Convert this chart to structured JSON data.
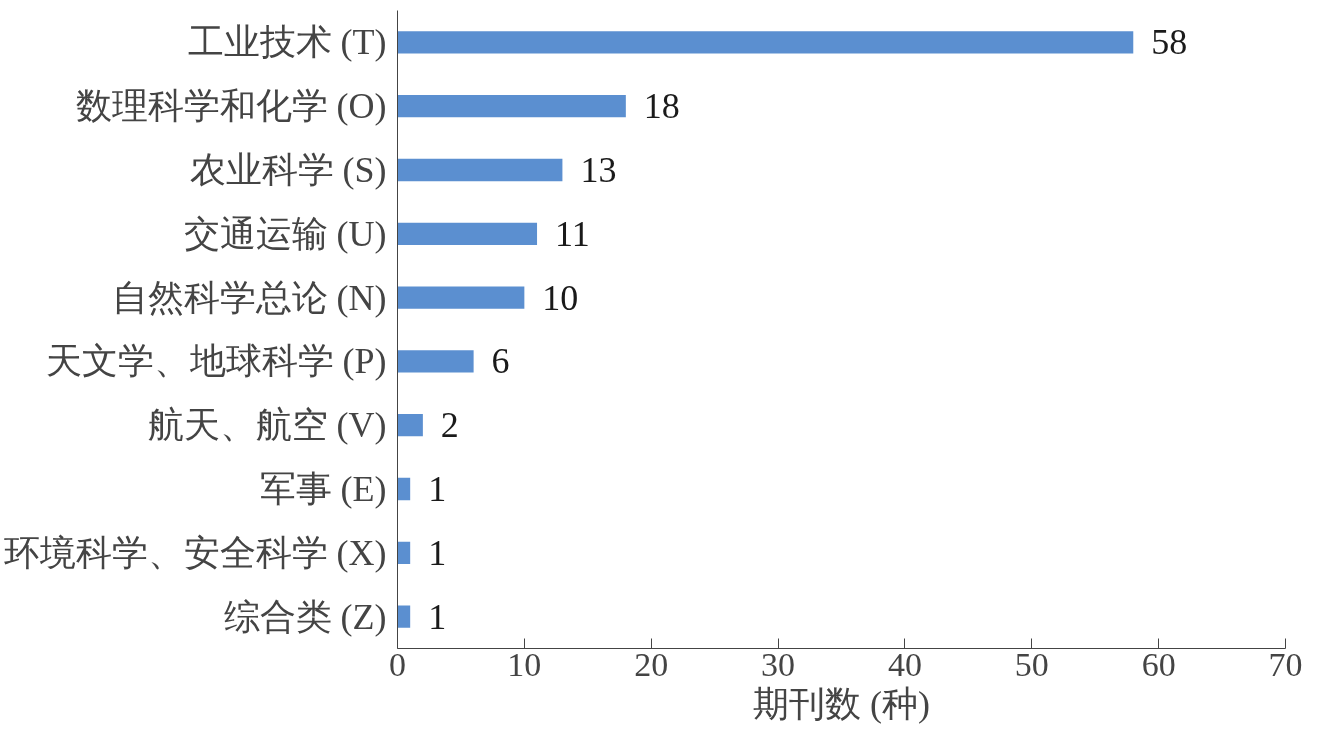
{
  "chart_data": {
    "type": "bar",
    "orientation": "horizontal",
    "xlabel": "期刊数 (种)",
    "categories": [
      "工业技术 (T)",
      "数理科学和化学 (O)",
      "农业科学 (S)",
      "交通运输 (U)",
      "自然科学总论 (N)",
      "天文学、地球科学 (P)",
      "航天、航空 (V)",
      "军事 (E)",
      "环境科学、安全科学 (X)",
      "综合类 (Z)"
    ],
    "values": [
      58,
      18,
      13,
      11,
      10,
      6,
      2,
      1,
      1,
      1
    ],
    "color": "#5b8fd0",
    "xlim": [
      0,
      70
    ],
    "xticks": [
      0,
      10,
      20,
      30,
      40,
      50,
      60,
      70
    ],
    "data_labels": true,
    "grid": false
  }
}
